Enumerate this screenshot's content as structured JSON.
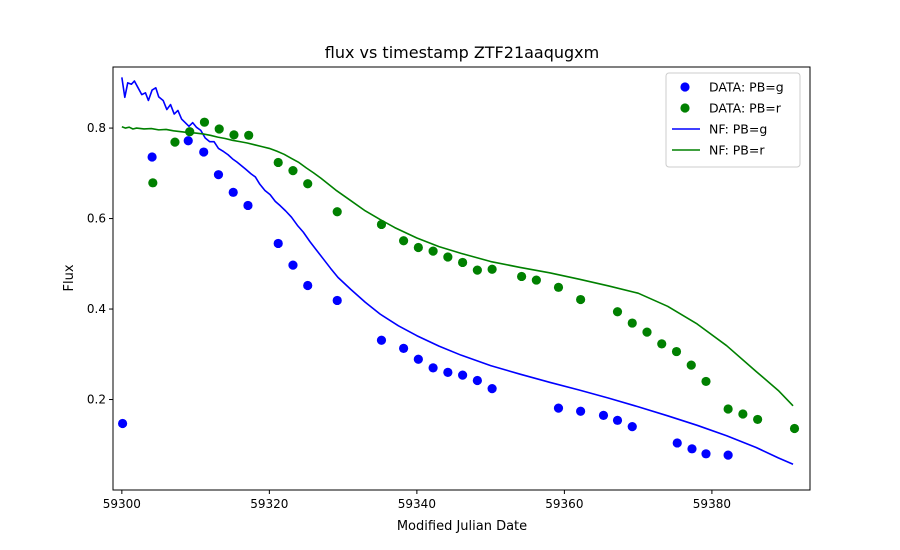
{
  "chart_data": {
    "type": "scatter",
    "title": "flux vs timestamp ZTF21aaqugxm",
    "xlabel": "Modified Julian Date",
    "ylabel": "Flux",
    "xlim": [
      59298.8,
      59393.3
    ],
    "ylim": [
      0.0,
      0.935
    ],
    "xticks": [
      59300,
      59320,
      59340,
      59360,
      59380
    ],
    "yticks": [
      0.2,
      0.4,
      0.6,
      0.8
    ],
    "grid": false,
    "legend_position": "top-right",
    "colors": {
      "g": "#0000ff",
      "r": "#008000"
    },
    "series": [
      {
        "name": "DATA: PB=g",
        "kind": "scatter",
        "color": "#0000ff",
        "points": [
          [
            59300.1,
            0.147
          ],
          [
            59304.1,
            0.736
          ],
          [
            59309.0,
            0.772
          ],
          [
            59311.1,
            0.747
          ],
          [
            59313.1,
            0.697
          ],
          [
            59315.1,
            0.658
          ],
          [
            59317.1,
            0.629
          ],
          [
            59321.2,
            0.545
          ],
          [
            59323.2,
            0.497
          ],
          [
            59325.2,
            0.452
          ],
          [
            59329.2,
            0.419
          ],
          [
            59335.2,
            0.331
          ],
          [
            59338.2,
            0.313
          ],
          [
            59340.2,
            0.289
          ],
          [
            59342.2,
            0.27
          ],
          [
            59344.2,
            0.26
          ],
          [
            59346.2,
            0.254
          ],
          [
            59348.2,
            0.242
          ],
          [
            59350.2,
            0.224
          ],
          [
            59359.2,
            0.181
          ],
          [
            59362.2,
            0.174
          ],
          [
            59365.3,
            0.165
          ],
          [
            59367.2,
            0.154
          ],
          [
            59369.2,
            0.14
          ],
          [
            59375.3,
            0.104
          ],
          [
            59377.3,
            0.091
          ],
          [
            59379.2,
            0.08
          ],
          [
            59382.2,
            0.077
          ]
        ]
      },
      {
        "name": "DATA: PB=r",
        "kind": "scatter",
        "color": "#008000",
        "points": [
          [
            59304.2,
            0.679
          ],
          [
            59307.2,
            0.769
          ],
          [
            59309.2,
            0.792
          ],
          [
            59311.2,
            0.813
          ],
          [
            59313.2,
            0.798
          ],
          [
            59315.2,
            0.785
          ],
          [
            59317.2,
            0.784
          ],
          [
            59321.2,
            0.724
          ],
          [
            59323.2,
            0.706
          ],
          [
            59325.2,
            0.677
          ],
          [
            59329.2,
            0.615
          ],
          [
            59335.2,
            0.587
          ],
          [
            59338.2,
            0.551
          ],
          [
            59340.2,
            0.536
          ],
          [
            59342.2,
            0.528
          ],
          [
            59344.2,
            0.515
          ],
          [
            59346.2,
            0.503
          ],
          [
            59348.2,
            0.486
          ],
          [
            59350.2,
            0.488
          ],
          [
            59354.2,
            0.472
          ],
          [
            59356.2,
            0.464
          ],
          [
            59359.2,
            0.448
          ],
          [
            59362.2,
            0.421
          ],
          [
            59367.2,
            0.394
          ],
          [
            59369.2,
            0.369
          ],
          [
            59371.2,
            0.349
          ],
          [
            59373.2,
            0.323
          ],
          [
            59375.2,
            0.306
          ],
          [
            59377.2,
            0.276
          ],
          [
            59379.2,
            0.24
          ],
          [
            59382.2,
            0.179
          ],
          [
            59384.2,
            0.168
          ],
          [
            59386.2,
            0.156
          ],
          [
            59391.2,
            0.136
          ]
        ]
      },
      {
        "name": "NF: PB=g",
        "kind": "line",
        "color": "#0000ff",
        "points": [
          [
            59300.0,
            0.912
          ],
          [
            59300.4,
            0.868
          ],
          [
            59300.8,
            0.9
          ],
          [
            59301.3,
            0.897
          ],
          [
            59301.7,
            0.904
          ],
          [
            59302.2,
            0.889
          ],
          [
            59302.7,
            0.874
          ],
          [
            59303.2,
            0.878
          ],
          [
            59303.6,
            0.861
          ],
          [
            59304.1,
            0.884
          ],
          [
            59304.6,
            0.889
          ],
          [
            59305.0,
            0.869
          ],
          [
            59305.6,
            0.861
          ],
          [
            59306.1,
            0.841
          ],
          [
            59306.6,
            0.852
          ],
          [
            59307.1,
            0.831
          ],
          [
            59307.6,
            0.839
          ],
          [
            59308.1,
            0.82
          ],
          [
            59308.6,
            0.812
          ],
          [
            59309.1,
            0.804
          ],
          [
            59309.6,
            0.812
          ],
          [
            59310.1,
            0.802
          ],
          [
            59310.7,
            0.795
          ],
          [
            59311.3,
            0.778
          ],
          [
            59311.9,
            0.77
          ],
          [
            59312.5,
            0.77
          ],
          [
            59313.1,
            0.755
          ],
          [
            59313.8,
            0.748
          ],
          [
            59314.4,
            0.741
          ],
          [
            59315.0,
            0.732
          ],
          [
            59315.6,
            0.725
          ],
          [
            59316.2,
            0.717
          ],
          [
            59316.8,
            0.709
          ],
          [
            59317.5,
            0.699
          ],
          [
            59318.1,
            0.692
          ],
          [
            59318.7,
            0.676
          ],
          [
            59319.4,
            0.662
          ],
          [
            59320.1,
            0.653
          ],
          [
            59320.8,
            0.638
          ],
          [
            59321.5,
            0.628
          ],
          [
            59322.2,
            0.617
          ],
          [
            59323.0,
            0.603
          ],
          [
            59323.8,
            0.585
          ],
          [
            59324.6,
            0.57
          ],
          [
            59325.5,
            0.549
          ],
          [
            59326.4,
            0.53
          ],
          [
            59327.3,
            0.511
          ],
          [
            59328.3,
            0.49
          ],
          [
            59329.3,
            0.47
          ],
          [
            59331.0,
            0.444
          ],
          [
            59333.0,
            0.415
          ],
          [
            59335.0,
            0.389
          ],
          [
            59337.5,
            0.363
          ],
          [
            59340.0,
            0.341
          ],
          [
            59343.0,
            0.318
          ],
          [
            59346.0,
            0.298
          ],
          [
            59350.0,
            0.275
          ],
          [
            59354.0,
            0.256
          ],
          [
            59358.0,
            0.238
          ],
          [
            59362.0,
            0.221
          ],
          [
            59366.0,
            0.203
          ],
          [
            59370.0,
            0.184
          ],
          [
            59374.0,
            0.164
          ],
          [
            59378.0,
            0.143
          ],
          [
            59382.0,
            0.12
          ],
          [
            59386.0,
            0.094
          ],
          [
            59389.0,
            0.071
          ],
          [
            59391.0,
            0.057
          ]
        ]
      },
      {
        "name": "NF: PB=r",
        "kind": "line",
        "color": "#008000",
        "points": [
          [
            59300.0,
            0.803
          ],
          [
            59300.5,
            0.8
          ],
          [
            59301.0,
            0.802
          ],
          [
            59301.5,
            0.798
          ],
          [
            59302.0,
            0.8
          ],
          [
            59303.0,
            0.798
          ],
          [
            59304.0,
            0.799
          ],
          [
            59305.0,
            0.796
          ],
          [
            59306.0,
            0.797
          ],
          [
            59307.0,
            0.794
          ],
          [
            59308.0,
            0.792
          ],
          [
            59309.0,
            0.79
          ],
          [
            59310.0,
            0.789
          ],
          [
            59311.0,
            0.787
          ],
          [
            59312.0,
            0.784
          ],
          [
            59313.0,
            0.78
          ],
          [
            59314.0,
            0.777
          ],
          [
            59315.0,
            0.773
          ],
          [
            59316.0,
            0.77
          ],
          [
            59317.0,
            0.767
          ],
          [
            59318.0,
            0.763
          ],
          [
            59319.0,
            0.759
          ],
          [
            59320.0,
            0.755
          ],
          [
            59321.0,
            0.749
          ],
          [
            59322.0,
            0.742
          ],
          [
            59323.0,
            0.733
          ],
          [
            59324.0,
            0.724
          ],
          [
            59325.0,
            0.712
          ],
          [
            59326.0,
            0.701
          ],
          [
            59327.0,
            0.689
          ],
          [
            59328.0,
            0.676
          ],
          [
            59329.0,
            0.663
          ],
          [
            59331.0,
            0.64
          ],
          [
            59333.0,
            0.617
          ],
          [
            59335.0,
            0.598
          ],
          [
            59337.0,
            0.58
          ],
          [
            59340.0,
            0.557
          ],
          [
            59343.0,
            0.538
          ],
          [
            59346.0,
            0.523
          ],
          [
            59350.0,
            0.505
          ],
          [
            59354.0,
            0.492
          ],
          [
            59358.0,
            0.48
          ],
          [
            59362.0,
            0.466
          ],
          [
            59366.0,
            0.451
          ],
          [
            59370.0,
            0.435
          ],
          [
            59374.0,
            0.406
          ],
          [
            59378.0,
            0.367
          ],
          [
            59382.0,
            0.319
          ],
          [
            59386.0,
            0.262
          ],
          [
            59389.0,
            0.22
          ],
          [
            59391.0,
            0.186
          ]
        ]
      }
    ]
  }
}
